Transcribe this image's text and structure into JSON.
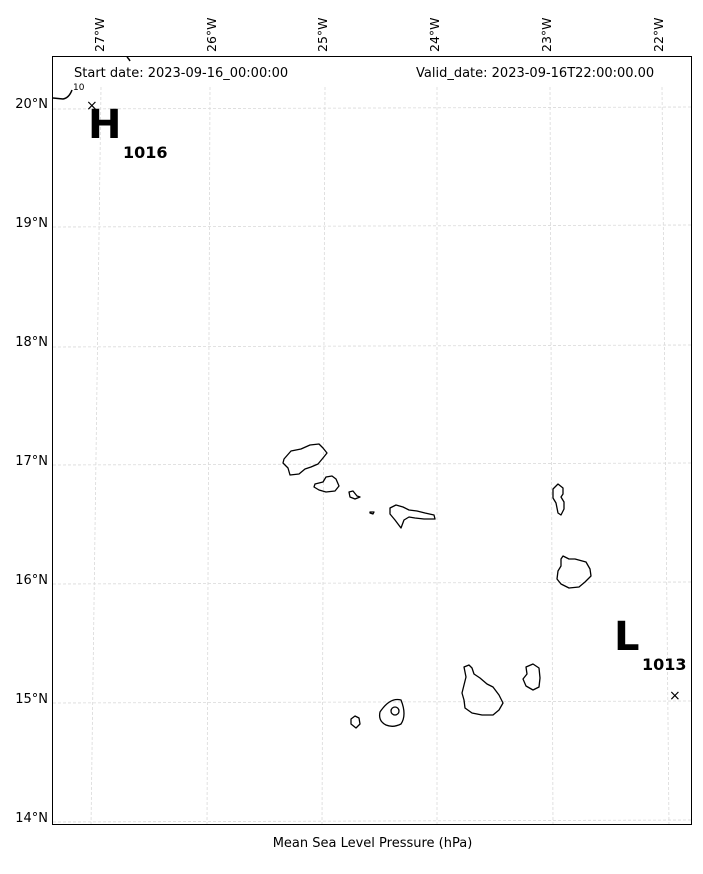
{
  "map": {
    "start_date": "Start date: 2023-09-16_00:00:00",
    "valid_date": "Valid_date: 2023-09-16T22:00:00.00",
    "caption": "Mean Sea Level Pressure (hPa)",
    "contour_tick": "10",
    "longitude_labels": [
      "27°W",
      "26°W",
      "25°W",
      "24°W",
      "23°W",
      "22°W"
    ],
    "latitude_labels": [
      "20°N",
      "19°N",
      "18°N",
      "17°N",
      "16°N",
      "15°N",
      "14°N"
    ],
    "high": {
      "letter": "H",
      "value": "1016",
      "marker": "×"
    },
    "low": {
      "letter": "L",
      "value": "1013",
      "marker": "×"
    },
    "colors": {
      "coastline": "#000000",
      "gridline": "#d9d9d9",
      "frame": "#000000"
    }
  }
}
